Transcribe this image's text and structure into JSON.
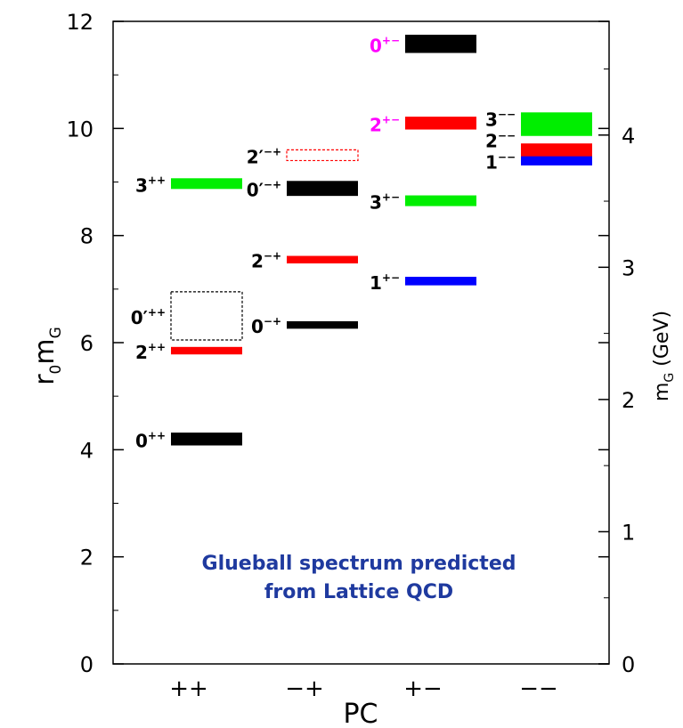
{
  "chart_data": {
    "type": "bar",
    "title": "",
    "xlabel": "PC",
    "ylabel_left": {
      "main": "r",
      "sub1": "0",
      "main2": "m",
      "sub2": "G"
    },
    "ylabel_right": {
      "main": "m",
      "sub": "G",
      "unit": " (GeV)"
    },
    "ylim_left": [
      0,
      12
    ],
    "ylim_right": [
      0,
      4.86
    ],
    "yticks_left": [
      "0",
      "2",
      "4",
      "6",
      "8",
      "10",
      "12"
    ],
    "yticks_right": [
      "0",
      "1",
      "2",
      "3",
      "4"
    ],
    "categories": [
      "++",
      "−+",
      "+−",
      "−−"
    ],
    "states": [
      {
        "pc": "++",
        "J": "0",
        "prime": false,
        "sup": "++",
        "mass": 4.2,
        "err": 0.12,
        "color": "#000000",
        "label_color": "#000000",
        "style": "solid"
      },
      {
        "pc": "++",
        "J": "2",
        "prime": false,
        "sup": "++",
        "mass": 5.85,
        "err": 0.07,
        "color": "#ff0000",
        "label_color": "#000000",
        "style": "solid"
      },
      {
        "pc": "++",
        "J": "0",
        "prime": true,
        "sup": "++",
        "mass": 6.5,
        "err": 0.45,
        "color": "#000000",
        "label_color": "#000000",
        "style": "dashed"
      },
      {
        "pc": "++",
        "J": "3",
        "prime": false,
        "sup": "++",
        "mass": 8.97,
        "err": 0.1,
        "color": "#00ee00",
        "label_color": "#000000",
        "style": "solid"
      },
      {
        "pc": "−+",
        "J": "0",
        "prime": false,
        "sup": "−+",
        "mass": 6.33,
        "err": 0.07,
        "color": "#000000",
        "label_color": "#000000",
        "style": "solid"
      },
      {
        "pc": "−+",
        "J": "2",
        "prime": false,
        "sup": "−+",
        "mass": 7.55,
        "err": 0.07,
        "color": "#ff0000",
        "label_color": "#000000",
        "style": "solid"
      },
      {
        "pc": "−+",
        "J": "0",
        "prime": true,
        "sup": "−+",
        "mass": 8.88,
        "err": 0.14,
        "color": "#000000",
        "label_color": "#000000",
        "style": "solid"
      },
      {
        "pc": "−+",
        "J": "2",
        "prime": true,
        "sup": "−+",
        "mass": 9.5,
        "err": 0.1,
        "color": "#ff0000",
        "label_color": "#000000",
        "style": "dashed"
      },
      {
        "pc": "+−",
        "J": "1",
        "prime": false,
        "sup": "+−",
        "mass": 7.15,
        "err": 0.08,
        "color": "#0000ff",
        "label_color": "#000000",
        "style": "solid"
      },
      {
        "pc": "+−",
        "J": "3",
        "prime": false,
        "sup": "+−",
        "mass": 8.65,
        "err": 0.1,
        "color": "#00ee00",
        "label_color": "#000000",
        "style": "solid"
      },
      {
        "pc": "+−",
        "J": "2",
        "prime": false,
        "sup": "+−",
        "mass": 10.1,
        "err": 0.12,
        "color": "#ff0000",
        "label_color": "#ff00ff",
        "style": "solid"
      },
      {
        "pc": "+−",
        "J": "0",
        "prime": false,
        "sup": "+−",
        "mass": 11.58,
        "err": 0.17,
        "color": "#000000",
        "label_color": "#ff00ff",
        "style": "solid"
      },
      {
        "pc": "−−",
        "J": "1",
        "prime": false,
        "sup": "−−",
        "mass": 9.4,
        "err": 0.09,
        "color": "#0000ff",
        "label_color": "#000000",
        "style": "solid"
      },
      {
        "pc": "−−",
        "J": "2",
        "prime": false,
        "sup": "−−",
        "mass": 9.6,
        "err": 0.12,
        "color": "#ff0000",
        "label_color": "#000000",
        "style": "solid"
      },
      {
        "pc": "−−",
        "J": "3",
        "prime": false,
        "sup": "−−",
        "mass": 10.08,
        "err": 0.22,
        "color": "#00ee00",
        "label_color": "#000000",
        "style": "solid"
      }
    ],
    "annotation": [
      "Glueball spectrum predicted",
      "from Lattice QCD"
    ],
    "grid": false,
    "legend": "none"
  }
}
